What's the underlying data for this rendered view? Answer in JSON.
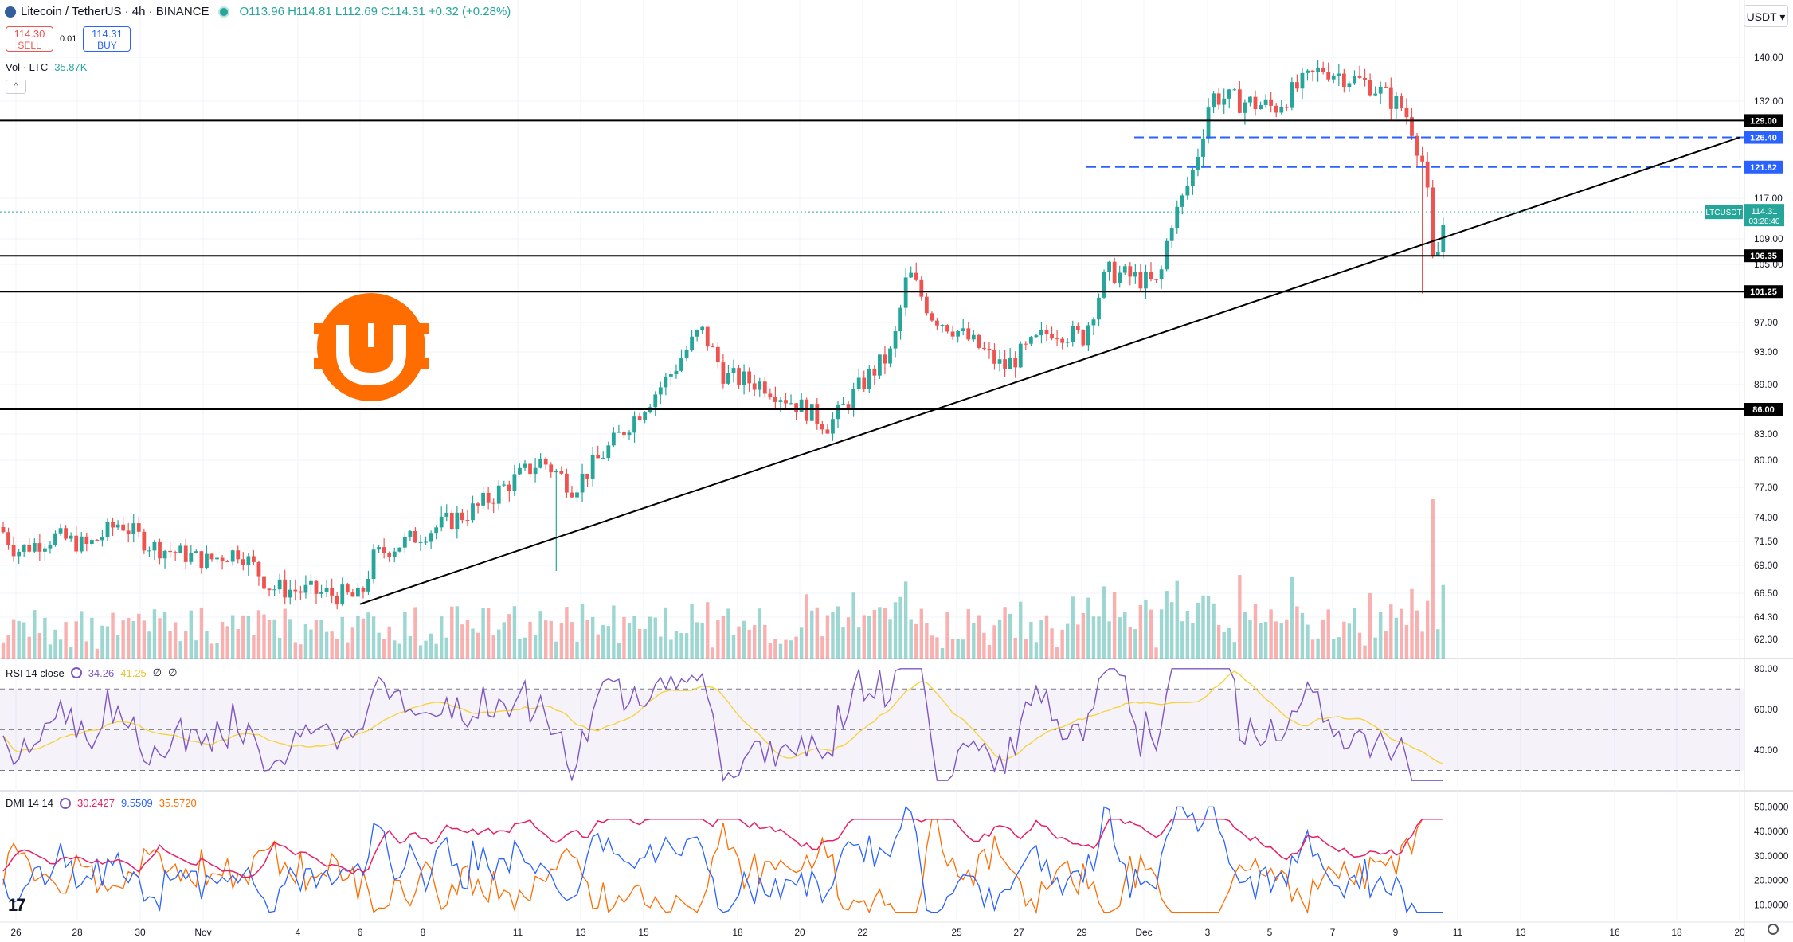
{
  "header": {
    "symbol": "Litecoin / TetherUS · 4h · BINANCE",
    "ohlc": "O113.96 H114.81 L112.69 C114.31 +0.32 (+0.28%)",
    "sell_price": "114.30",
    "sell_label": "SELL",
    "spread": "0.01",
    "buy_price": "114.31",
    "buy_label": "BUY",
    "collapse_glyph": "^"
  },
  "currency": "USDT",
  "volume_legend": {
    "label": "Vol · LTC",
    "value": "35.87K"
  },
  "rsi_legend": {
    "label": "RSI 14 close",
    "rsi": "34.26",
    "ma": "41.25",
    "extra1": "∅",
    "extra2": "∅"
  },
  "dmi_legend": {
    "label": "DMI 14 14",
    "plus": "30.2427",
    "minus": "9.5509",
    "adx": "35.5720"
  },
  "logo": {
    "name": "orange-coin-logo",
    "color": "#ff6d00"
  },
  "colors": {
    "up": "#26a69a",
    "down": "#ef5350",
    "rsi": "#7e57c2",
    "rsi_ma": "#f5d442",
    "dmi_plus": "#2962ff",
    "dmi_minus": "#ff6d00",
    "adx": "#e91e63",
    "marker_dashed": "#2962ff"
  },
  "chart_data": {
    "type": "candlestick",
    "timeframe": "4h",
    "price_axis": {
      "ticks": [
        "140.00",
        "132.00",
        "117.00",
        "109.00",
        "105.00",
        "97.00",
        "93.00",
        "89.00",
        "83.00",
        "80.00",
        "77.00",
        "74.00",
        "71.50",
        "69.00",
        "66.50",
        "64.30",
        "62.30"
      ],
      "tick_values": [
        140,
        132,
        117,
        109,
        105,
        97,
        93,
        89,
        83,
        80,
        77,
        74,
        71.5,
        69,
        66.5,
        64.3,
        62.3
      ]
    },
    "x_axis": {
      "ticks": [
        "26",
        "28",
        "30",
        "Nov",
        "4",
        "6",
        "8",
        "11",
        "13",
        "15",
        "18",
        "20",
        "22",
        "25",
        "27",
        "29",
        "Dec",
        "3",
        "5",
        "7",
        "9",
        "11",
        "13",
        "16",
        "18",
        "20"
      ]
    },
    "horizontal_levels": [
      {
        "value": 129.0,
        "label": "129.00",
        "style": "solid"
      },
      {
        "value": 106.35,
        "label": "106.35",
        "style": "solid"
      },
      {
        "value": 101.25,
        "label": "101.25",
        "style": "solid"
      },
      {
        "value": 86.0,
        "label": "86.00",
        "style": "solid"
      },
      {
        "value": 126.4,
        "label": "126.40",
        "style": "dashed"
      },
      {
        "value": 121.82,
        "label": "121.82",
        "style": "dashed"
      }
    ],
    "current_price": {
      "label": "LTCUSDT",
      "value": "114.31",
      "countdown": "03:28:40"
    },
    "trendline": {
      "from": {
        "x": "6",
        "price": 65.5
      },
      "to": {
        "x": "20",
        "price": 126.4
      }
    },
    "rsi": {
      "ticks": [
        "80.00",
        "60.00",
        "40.00"
      ],
      "upper_band": 70,
      "lower_band": 30
    },
    "dmi": {
      "ticks": [
        "50.0000",
        "40.0000",
        "30.0000",
        "20.0000",
        "10.0000"
      ]
    }
  }
}
